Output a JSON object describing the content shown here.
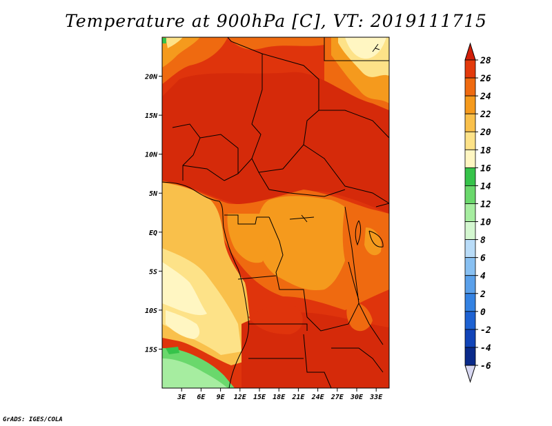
{
  "title": "Temperature at 900hPa [C], VT: 2019111715",
  "credit": "GrADS: IGES/COLA",
  "map": {
    "lon_range": [
      0,
      35
    ],
    "lat_range": [
      -20,
      25
    ],
    "lon_ticks": [
      {
        "value": 3,
        "label": "3E"
      },
      {
        "value": 6,
        "label": "6E"
      },
      {
        "value": 9,
        "label": "9E"
      },
      {
        "value": 12,
        "label": "12E"
      },
      {
        "value": 15,
        "label": "15E"
      },
      {
        "value": 18,
        "label": "18E"
      },
      {
        "value": 21,
        "label": "21E"
      },
      {
        "value": 24,
        "label": "24E"
      },
      {
        "value": 27,
        "label": "27E"
      },
      {
        "value": 30,
        "label": "30E"
      },
      {
        "value": 33,
        "label": "33E"
      }
    ],
    "lat_ticks": [
      {
        "value": 20,
        "label": "20N"
      },
      {
        "value": 15,
        "label": "15N"
      },
      {
        "value": 10,
        "label": "10N"
      },
      {
        "value": 5,
        "label": "5N"
      },
      {
        "value": 0,
        "label": "EQ"
      },
      {
        "value": -5,
        "label": "5S"
      },
      {
        "value": -10,
        "label": "10S"
      },
      {
        "value": -15,
        "label": "15S"
      }
    ]
  },
  "colorbar": {
    "levels": [
      {
        "label": "28",
        "color": "#d52a0a"
      },
      {
        "label": "26",
        "color": "#e33a0c"
      },
      {
        "label": "24",
        "color": "#ef6a10"
      },
      {
        "label": "22",
        "color": "#f59a1d"
      },
      {
        "label": "20",
        "color": "#f9c04b"
      },
      {
        "label": "18",
        "color": "#fde288"
      },
      {
        "label": "16",
        "color": "#fff6c2"
      },
      {
        "label": "14",
        "color": "#36c34a"
      },
      {
        "label": "12",
        "color": "#6ad86c"
      },
      {
        "label": "10",
        "color": "#a6eda0"
      },
      {
        "label": "8",
        "color": "#d4f7d0"
      },
      {
        "label": "6",
        "color": "#b9dcf8"
      },
      {
        "label": "4",
        "color": "#88c0f2"
      },
      {
        "label": "2",
        "color": "#5aa0ea"
      },
      {
        "label": "0",
        "color": "#3482e2"
      },
      {
        "label": "-2",
        "color": "#1e62d2"
      },
      {
        "label": "-4",
        "color": "#1144b8"
      },
      {
        "label": "-6",
        "color": "#0a2a8a"
      }
    ],
    "top_color": "#d21f0a",
    "bottom_color": "#d8d8f2"
  }
}
